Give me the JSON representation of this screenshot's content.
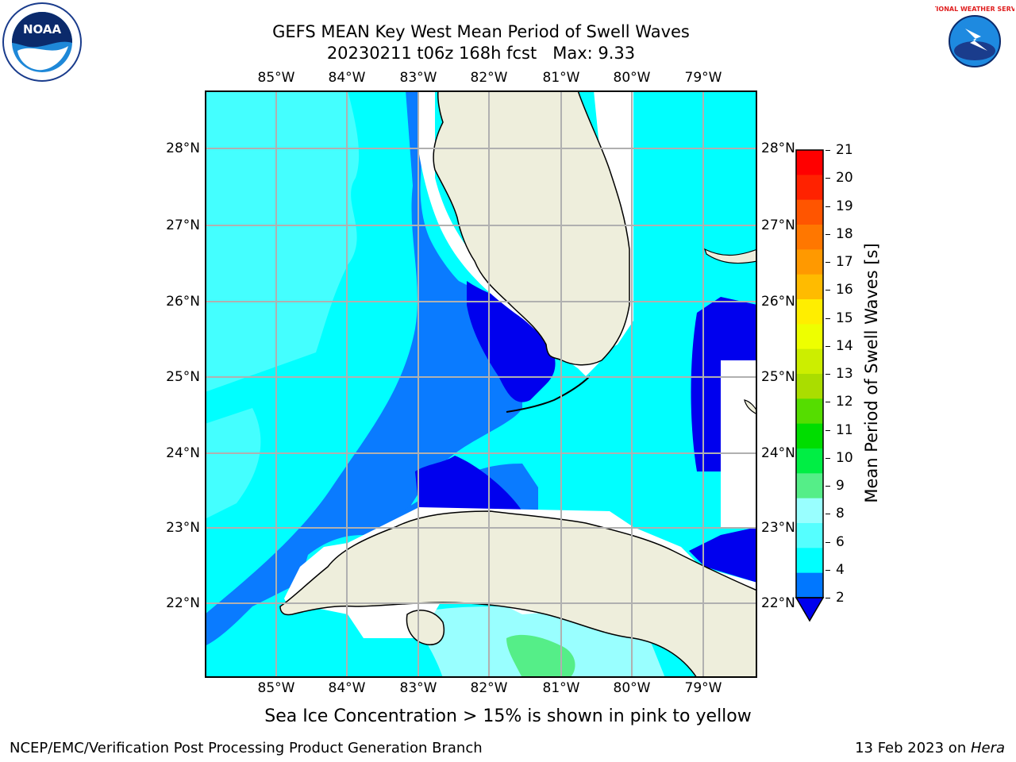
{
  "header": {
    "title_line1": "GEFS MEAN Key West Mean Period of Swell Waves",
    "title_line2": "20230211 t06z 168h fcst   Max: 9.33",
    "left_logo_text": "NOAA",
    "right_logo_text": "NATIONAL WEATHER SERVICE"
  },
  "map": {
    "lon_labels": [
      "85°W",
      "84°W",
      "83°W",
      "82°W",
      "81°W",
      "80°W",
      "79°W"
    ],
    "lat_labels": [
      "28°N",
      "27°N",
      "26°N",
      "25°N",
      "24°N",
      "23°N",
      "22°N"
    ]
  },
  "colorbar": {
    "label": "Mean Period of Swell Waves [s]",
    "ticks": [
      "21",
      "20",
      "19",
      "18",
      "17",
      "16",
      "15",
      "14",
      "13",
      "12",
      "11",
      "10",
      "9",
      "8",
      "6",
      "4",
      "2"
    ],
    "colors": [
      "#ff0000",
      "#ff2200",
      "#ff5500",
      "#ff7700",
      "#ff9900",
      "#ffbb00",
      "#ffee00",
      "#eeff00",
      "#ccee00",
      "#aadd00",
      "#55dd00",
      "#00dd00",
      "#00ee44",
      "#55ee88",
      "#99ffff",
      "#55ffff",
      "#00ffff",
      "#0077ff"
    ],
    "extend_color": "#0000ee"
  },
  "caption": "Sea Ice Concentration > 15% is shown in pink to yellow",
  "footer": {
    "left": "NCEP/EMC/Verification Post Processing Product Generation Branch",
    "right_date": "13 Feb 2023 on ",
    "right_host": "Hera"
  }
}
